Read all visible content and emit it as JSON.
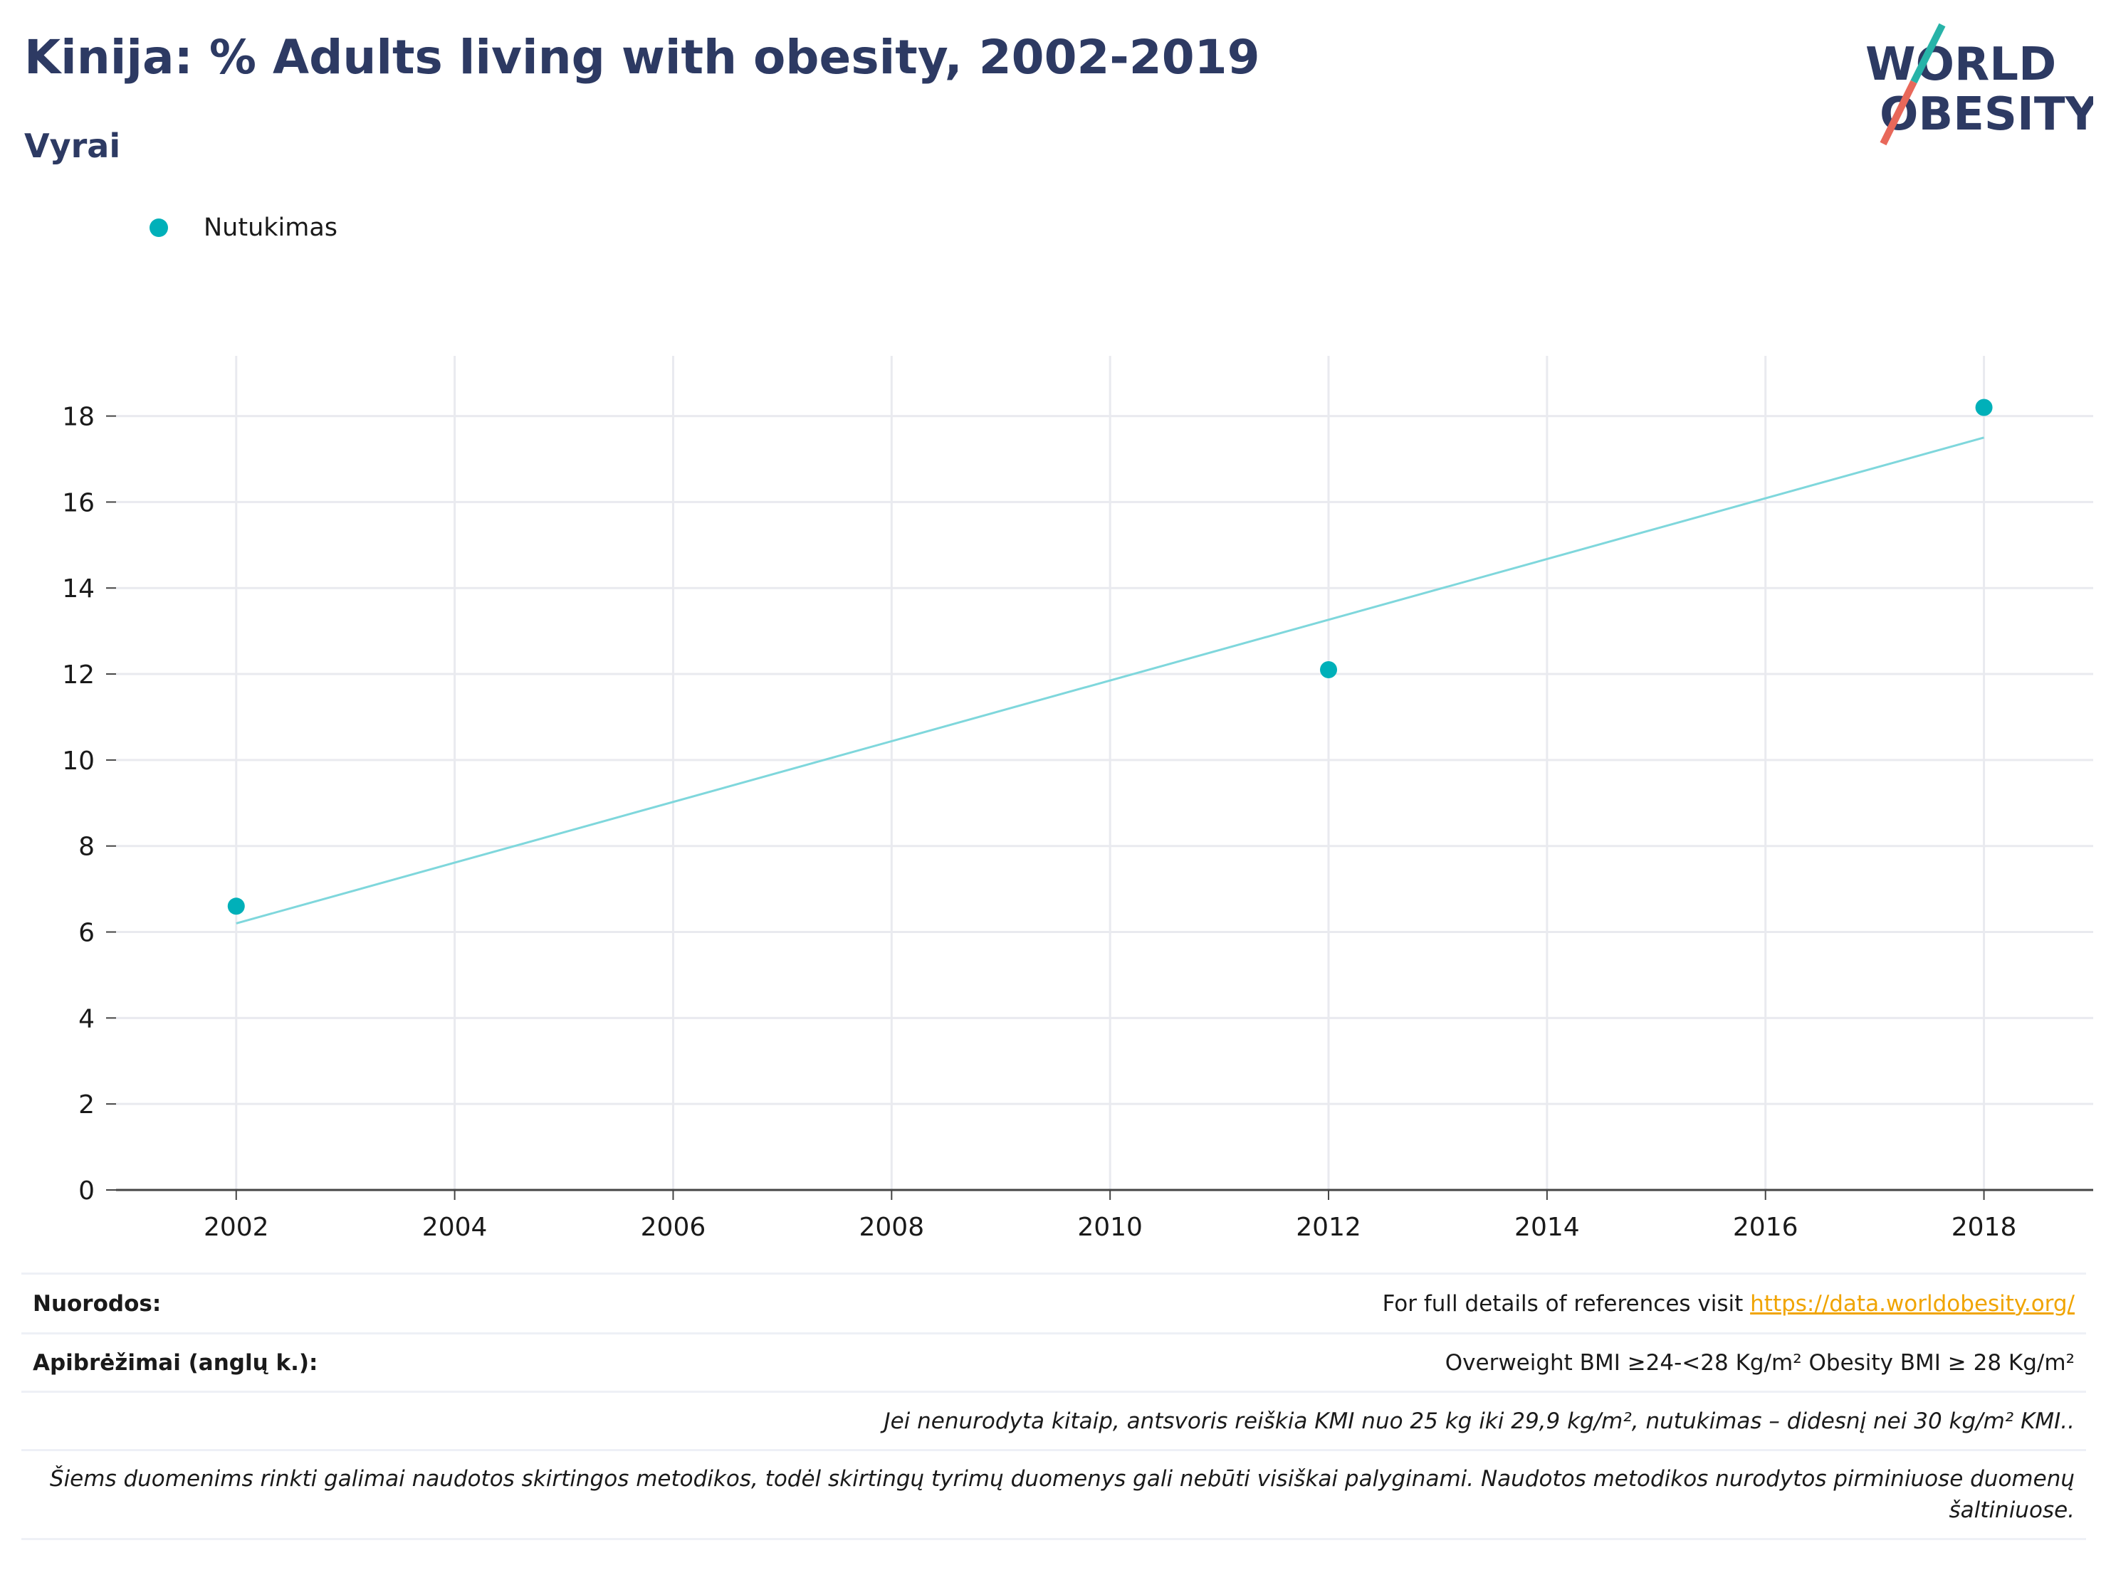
{
  "header": {
    "title": "Kinija: % Adults living with obesity, 2002-2019",
    "subtitle": "Vyrai"
  },
  "logo": {
    "line1": "WORLD",
    "line2": "OBESITY",
    "accent1": "#27b3a8",
    "accent2": "#e8685a"
  },
  "colors": {
    "series": "#00b0b9",
    "trend": "#7fd7dc",
    "title": "#2d3a63",
    "link": "#f0a400"
  },
  "chart_data": {
    "type": "scatter",
    "title": "Kinija: % Adults living with obesity, 2002-2019",
    "subtitle": "Vyrai",
    "xlabel": "",
    "ylabel": "",
    "xlim": [
      2000.9,
      2019.0
    ],
    "ylim": [
      0,
      19.4
    ],
    "xticks": [
      2002,
      2004,
      2006,
      2008,
      2010,
      2012,
      2014,
      2016,
      2018
    ],
    "yticks": [
      0,
      2,
      4,
      6,
      8,
      10,
      12,
      14,
      16,
      18
    ],
    "grid": true,
    "legend": "top-left",
    "series": [
      {
        "name": "Nutukimas",
        "x": [
          2002,
          2012,
          2018
        ],
        "y": [
          6.6,
          12.1,
          18.2
        ]
      }
    ],
    "trendline": {
      "x": [
        2002,
        2018
      ],
      "y": [
        6.2,
        17.5
      ]
    }
  },
  "footer": {
    "references_label": "Nuorodos:",
    "references_text": "For full details of references visit ",
    "references_link": "https://data.worldobesity.org/",
    "definitions_label": "Apibrėžimai (anglų k.):",
    "definitions_text": "Overweight BMI ≥24-<28 Kg/m² Obesity BMI ≥ 28 Kg/m²",
    "note1": "Jei nenurodyta kitaip, antsvoris reiškia KMI nuo 25 kg iki 29,9 kg/m², nutukimas – didesnį nei 30 kg/m² KMI..",
    "note2": "Šiems duomenims rinkti galimai naudotos skirtingos metodikos, todėl skirtingų tyrimų duomenys gali nebūti visiškai palyginami. Naudotos metodikos nurodytos pirminiuose duomenų šaltiniuose."
  }
}
